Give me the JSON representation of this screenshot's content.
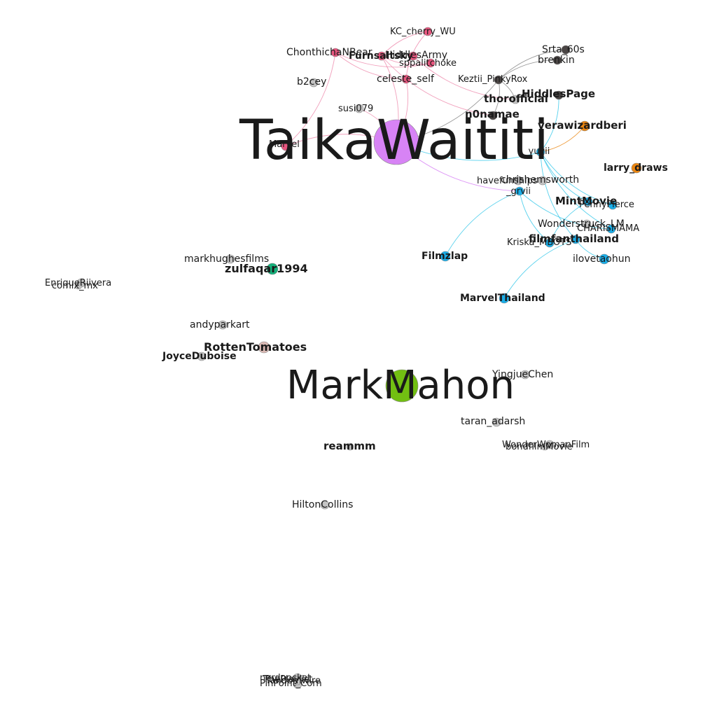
{
  "colors": {
    "background": "#ffffff",
    "pink": "#e8567f",
    "pink_edge": "#ee8fb0",
    "dark": "#4a4544",
    "dark_edge": "#888888",
    "cyan": "#1aaee8",
    "cyan_edge": "#39c9ea",
    "purple": "#d783f5",
    "green": "#72bf12",
    "teal": "#14b07a",
    "orange": "#ea8612",
    "tan": "#d9b9b4",
    "gray": "#c4c4c4"
  },
  "nodes": [
    {
      "id": "taika",
      "label": "TaikaWaititi",
      "color": "purple"
    },
    {
      "id": "markmahon",
      "label": "MarkMahon",
      "color": "green"
    },
    {
      "id": "kc",
      "label": "KC_cherry_WU",
      "color": "pink"
    },
    {
      "id": "chonthicha",
      "label": "ChonthichaNBear",
      "color": "pink"
    },
    {
      "id": "furnsalty",
      "label": "Furnsaltsky",
      "color": "pink"
    },
    {
      "id": "hiddlesarmy",
      "label": "HiddlesArmy",
      "color": "pink"
    },
    {
      "id": "sppalitchoke",
      "label": "sppalitchoke",
      "color": "pink"
    },
    {
      "id": "celeste",
      "label": "celeste_self",
      "color": "pink"
    },
    {
      "id": "marvel",
      "label": "Marvel",
      "color": "pink"
    },
    {
      "id": "b2cey",
      "label": "b2cey",
      "color": "gray"
    },
    {
      "id": "susi",
      "label": "susi079",
      "color": "gray"
    },
    {
      "id": "srta",
      "label": "Srta_60s",
      "color": "dark"
    },
    {
      "id": "brenkin",
      "label": "brenkin",
      "color": "dark"
    },
    {
      "id": "keztii",
      "label": "Keztii_PinkyRox",
      "color": "dark"
    },
    {
      "id": "hiddlespage",
      "label": "HiddlesPage",
      "color": "dark"
    },
    {
      "id": "thor",
      "label": "thorofficial",
      "color": "gray"
    },
    {
      "id": "n0namae",
      "label": "n0namae",
      "color": "dark"
    },
    {
      "id": "vera",
      "label": "verawizardberi",
      "color": "orange"
    },
    {
      "id": "larry",
      "label": "larry_draws",
      "color": "orange"
    },
    {
      "id": "yuyii",
      "label": "_yuyii",
      "color": "cyan"
    },
    {
      "id": "chris",
      "label": "chrishemsworth",
      "color": "gray"
    },
    {
      "id": "havefun",
      "label": "havefunships",
      "color": "gray"
    },
    {
      "id": "grvii",
      "label": "_grvii",
      "color": "cyan"
    },
    {
      "id": "mintmovie",
      "label": "MintMovie",
      "color": "cyan"
    },
    {
      "id": "pennypierce",
      "label": "PennyPierce",
      "color": "cyan"
    },
    {
      "id": "wonderstruck",
      "label": "Wonderstruck_LM",
      "color": "gray"
    },
    {
      "id": "charisma",
      "label": "CHARISMAMA",
      "color": "cyan"
    },
    {
      "id": "filmfan",
      "label": "filmfanthailand",
      "color": "cyan"
    },
    {
      "id": "kriska",
      "label": "Kriska_MBOTS",
      "color": "cyan"
    },
    {
      "id": "ilovet",
      "label": "ilovetaohun",
      "color": "cyan"
    },
    {
      "id": "filmzlap",
      "label": "Filmzlap",
      "color": "cyan"
    },
    {
      "id": "marvelthai",
      "label": "MarvelThailand",
      "color": "cyan"
    },
    {
      "id": "markhughes",
      "label": "markhughesfilms",
      "color": "gray"
    },
    {
      "id": "zulfaqar",
      "label": "zulfaqar1994",
      "color": "teal"
    },
    {
      "id": "enrique",
      "label": "EnriqueRiivera",
      "color": "gray"
    },
    {
      "id": "comix",
      "label": "comix_mx",
      "color": "gray"
    },
    {
      "id": "andypark",
      "label": "andyparkart",
      "color": "gray"
    },
    {
      "id": "rotten",
      "label": "RottenTomatoes",
      "color": "tan"
    },
    {
      "id": "joyce",
      "label": "JoyceDuboise",
      "color": "gray"
    },
    {
      "id": "yingjue",
      "label": "YingjueChen",
      "color": "gray"
    },
    {
      "id": "taran",
      "label": "taran_adarsh",
      "color": "gray"
    },
    {
      "id": "wonderwoman",
      "label": "WonderWomanFilm",
      "color": "gray"
    },
    {
      "id": "bondfilm",
      "label": "bondfilmMovie",
      "color": "gray"
    },
    {
      "id": "reammm",
      "label": "reammm",
      "color": "gray"
    },
    {
      "id": "hilton",
      "label": "HiltonCollins",
      "color": "gray"
    },
    {
      "id": "b1",
      "label": "nerdpocket",
      "color": "gray"
    },
    {
      "id": "b2",
      "label": "fandomwire",
      "color": "gray"
    },
    {
      "id": "b3",
      "label": "PinPoint_Corn",
      "color": "gray"
    },
    {
      "id": "b4",
      "label": "ThePlaylist",
      "color": "gray"
    }
  ],
  "edges": [
    [
      "taika",
      "marvel",
      "pink"
    ],
    [
      "taika",
      "celeste",
      "pink"
    ],
    [
      "taika",
      "susi",
      "pink"
    ],
    [
      "taika",
      "furnsalty",
      "pink"
    ],
    [
      "chonthicha",
      "sppalitchoke",
      "pink"
    ],
    [
      "chonthicha",
      "celeste",
      "pink"
    ],
    [
      "furnsalty",
      "sppalitchoke",
      "pink"
    ],
    [
      "kc",
      "celeste",
      "pink"
    ],
    [
      "kc",
      "furnsalty",
      "pink"
    ],
    [
      "hiddlesarmy",
      "thor",
      "pink"
    ],
    [
      "marvel",
      "chonthicha",
      "pink"
    ],
    [
      "furnsalty",
      "n0namae",
      "pink"
    ],
    [
      "taika",
      "keztii",
      "dark"
    ],
    [
      "srta",
      "keztii",
      "dark"
    ],
    [
      "brenkin",
      "keztii",
      "dark"
    ],
    [
      "n0namae",
      "keztii",
      "dark"
    ],
    [
      "thor",
      "keztii",
      "dark"
    ],
    [
      "taika",
      "yuyii",
      "cyan"
    ],
    [
      "taika",
      "grvii",
      "purple"
    ],
    [
      "yuyii",
      "hiddlespage",
      "cyan"
    ],
    [
      "yuyii",
      "mintmovie",
      "cyan"
    ],
    [
      "yuyii",
      "pennypierce",
      "cyan"
    ],
    [
      "yuyii",
      "charisma",
      "cyan"
    ],
    [
      "yuyii",
      "filmfan",
      "cyan"
    ],
    [
      "yuyii",
      "vera",
      "orange"
    ],
    [
      "grvii",
      "filmzlap",
      "cyan"
    ],
    [
      "grvii",
      "charisma",
      "cyan"
    ],
    [
      "grvii",
      "kriska",
      "cyan"
    ],
    [
      "filmfan",
      "marvelthai",
      "cyan"
    ],
    [
      "filmfan",
      "ilovet",
      "cyan"
    ],
    [
      "mintmovie",
      "kriska",
      "cyan"
    ]
  ]
}
